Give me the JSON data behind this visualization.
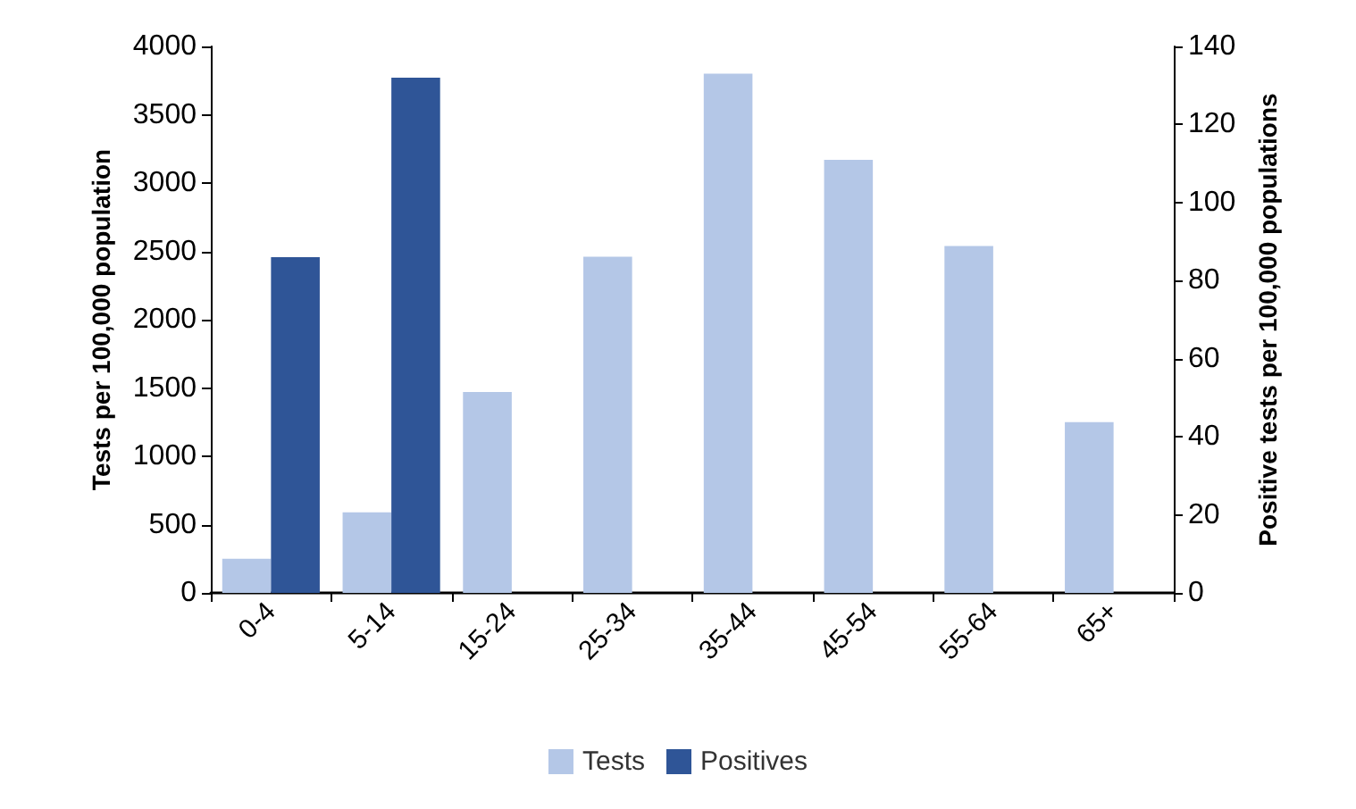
{
  "chart_data": {
    "type": "bar",
    "categories": [
      "0-4",
      "5-14",
      "15-24",
      "25-34",
      "35-44",
      "45-54",
      "55-64",
      "65+"
    ],
    "ylabel": "Tests per 100,000 population",
    "y2label": "Positive tests per 100,000 populations",
    "series": [
      {
        "name": "Tests",
        "color": "#b4c7e7",
        "values": [
          250,
          590,
          1470,
          2460,
          3800,
          3170,
          2540,
          1250
        ]
      },
      {
        "name": "Positives",
        "color": "#2f5597",
        "axis": "y2",
        "values": [
          86,
          132,
          null,
          null,
          null,
          null,
          null,
          null
        ]
      }
    ],
    "ylim": [
      0,
      4000
    ],
    "yticks": [
      0,
      500,
      1000,
      1500,
      2000,
      2500,
      3000,
      3500,
      4000
    ],
    "y2lim": [
      0,
      140
    ],
    "y2ticks": [
      0,
      20,
      40,
      60,
      80,
      100,
      120,
      140
    ],
    "grid": false,
    "legend": "bottom"
  }
}
